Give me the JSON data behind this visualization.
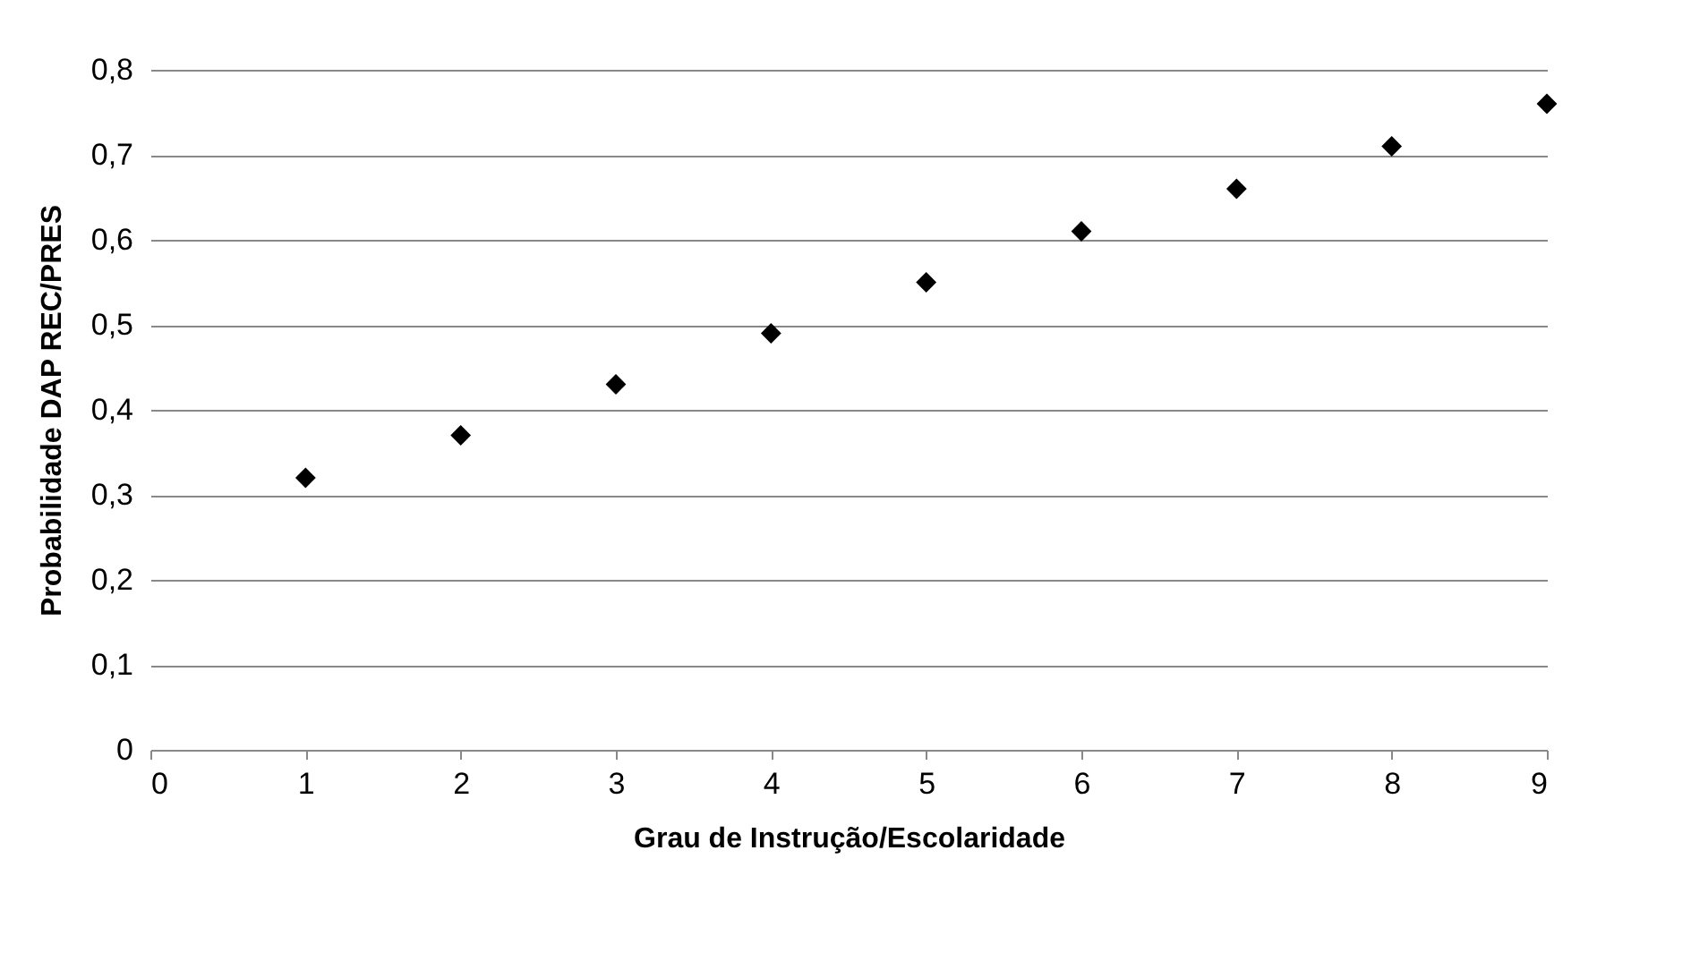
{
  "chart_data": {
    "type": "scatter",
    "xlabel": "Grau de Instrução/Escolaridade",
    "ylabel": "Probabilidade DAP REC/PRES",
    "x": [
      1,
      2,
      3,
      4,
      5,
      6,
      7,
      8,
      9
    ],
    "series": [
      {
        "color": "#000000",
        "values": [
          0.32,
          0.37,
          0.43,
          0.49,
          0.55,
          0.61,
          0.66,
          0.71,
          0.76
        ]
      }
    ],
    "xlim": [
      0,
      9
    ],
    "xticks": [
      0,
      1,
      2,
      3,
      4,
      5,
      6,
      7,
      8,
      9
    ],
    "ylim": [
      0,
      0.8
    ],
    "yticks": [
      {
        "value": 0,
        "label": "0"
      },
      {
        "value": 0.1,
        "label": "0,1"
      },
      {
        "value": 0.2,
        "label": "0,2"
      },
      {
        "value": 0.3,
        "label": "0,3"
      },
      {
        "value": 0.4,
        "label": "0,4"
      },
      {
        "value": 0.5,
        "label": "0,5"
      },
      {
        "value": 0.6,
        "label": "0,6"
      },
      {
        "value": 0.7,
        "label": "0,7"
      },
      {
        "value": 0.8,
        "label": "0,8"
      }
    ],
    "grid": "y",
    "marker": "diamond"
  }
}
